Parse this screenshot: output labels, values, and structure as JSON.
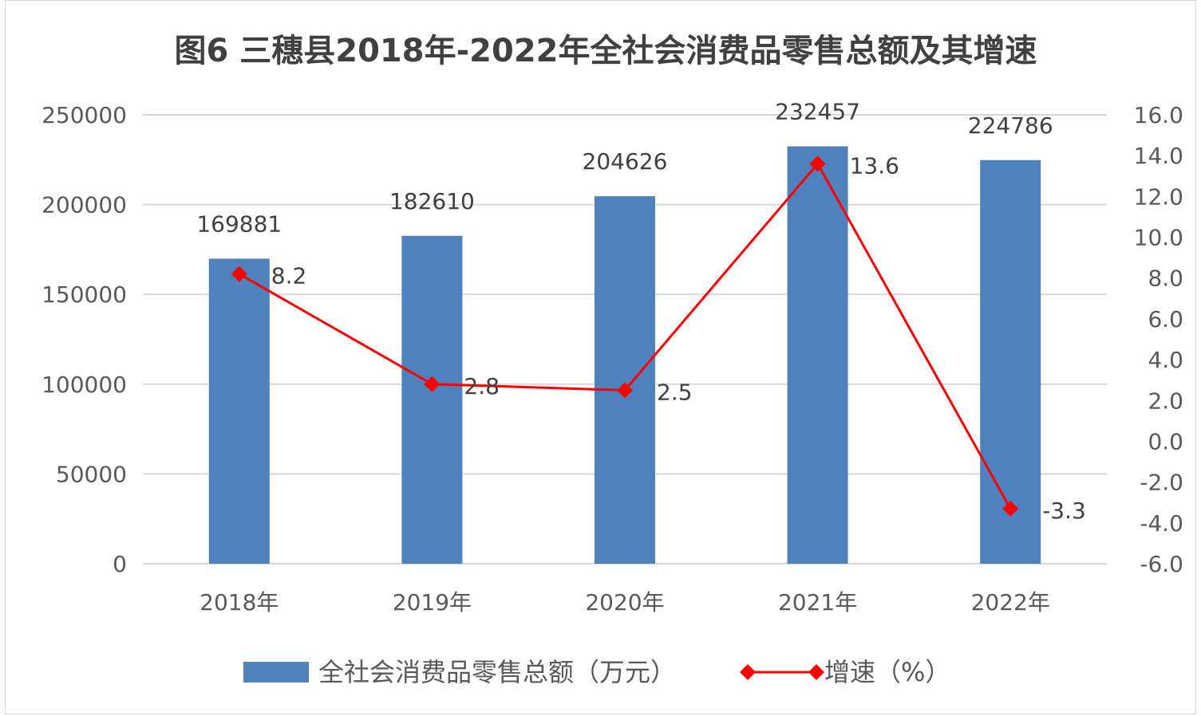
{
  "chart_data": {
    "type": "bar",
    "title": "图6  三穗县2018年-2022年全社会消费品零售总额及其增速",
    "categories": [
      "2018年",
      "2019年",
      "2020年",
      "2021年",
      "2022年"
    ],
    "series": [
      {
        "name": "全社会消费品零售总额（万元）",
        "type": "bar",
        "axis": "left",
        "color": "#4f81bd",
        "values": [
          169881,
          182610,
          204626,
          232457,
          224786
        ],
        "labels": [
          "169881",
          "182610",
          "204626",
          "232457",
          "224786"
        ]
      },
      {
        "name": "增速（%）",
        "type": "line",
        "axis": "right",
        "color": "#ff0000",
        "marker": "diamond",
        "values": [
          8.2,
          2.8,
          2.5,
          13.6,
          -3.3
        ],
        "labels": [
          "8.2",
          "2.8",
          "2.5",
          "13.6",
          "-3.3"
        ]
      }
    ],
    "y_left": {
      "min": 0,
      "max": 250000,
      "ticks": [
        "0",
        "50000",
        "100000",
        "150000",
        "200000",
        "250000"
      ]
    },
    "y_right": {
      "min": -6,
      "max": 16,
      "ticks": [
        "-6.0",
        "-4.0",
        "-2.0",
        "0.0",
        "2.0",
        "4.0",
        "6.0",
        "8.0",
        "10.0",
        "12.0",
        "14.0",
        "16.0"
      ]
    },
    "grid": true,
    "legend_position": "bottom"
  }
}
